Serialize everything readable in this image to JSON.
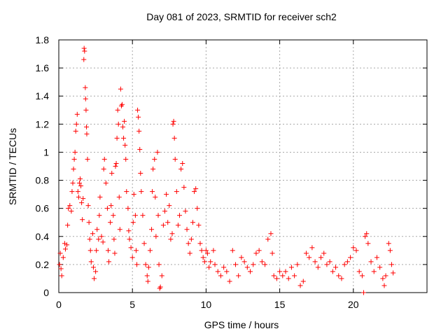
{
  "chart_data": {
    "type": "scatter",
    "title": "Day 081 of 2023, SRMTID for receiver sch2",
    "xlabel": "GPS time / hours",
    "ylabel": "SRMTID / TECUs",
    "xlim": [
      0,
      25
    ],
    "ylim": [
      0,
      1.8
    ],
    "xticks": [
      0,
      5,
      10,
      15,
      20
    ],
    "yticks": [
      0,
      0.2,
      0.4,
      0.6,
      0.8,
      1,
      1.2,
      1.4,
      1.6,
      1.8
    ],
    "grid": true,
    "marker": "+",
    "color": "#ff0000",
    "series": [
      {
        "name": "SRMTID",
        "points": [
          [
            0.05,
            0.2
          ],
          [
            0.1,
            0.28
          ],
          [
            0.15,
            0.17
          ],
          [
            0.2,
            0.12
          ],
          [
            0.3,
            0.25
          ],
          [
            0.4,
            0.35
          ],
          [
            0.45,
            0.31
          ],
          [
            0.55,
            0.34
          ],
          [
            0.6,
            0.48
          ],
          [
            0.65,
            0.6
          ],
          [
            0.75,
            0.62
          ],
          [
            0.85,
            0.58
          ],
          [
            0.9,
            0.72
          ],
          [
            0.95,
            0.78
          ],
          [
            1.0,
            0.88
          ],
          [
            1.05,
            0.95
          ],
          [
            1.1,
            1.0
          ],
          [
            1.15,
            1.15
          ],
          [
            1.2,
            1.2
          ],
          [
            1.25,
            1.27
          ],
          [
            1.3,
            0.72
          ],
          [
            1.35,
            0.68
          ],
          [
            1.4,
            0.78
          ],
          [
            1.45,
            0.81
          ],
          [
            1.5,
            0.76
          ],
          [
            1.55,
            0.64
          ],
          [
            1.6,
            0.52
          ],
          [
            1.65,
            0.67
          ],
          [
            1.7,
            1.66
          ],
          [
            1.72,
            1.74
          ],
          [
            1.75,
            1.72
          ],
          [
            1.8,
            1.46
          ],
          [
            1.82,
            1.38
          ],
          [
            1.85,
            1.3
          ],
          [
            1.88,
            1.18
          ],
          [
            1.9,
            1.13
          ],
          [
            1.95,
            0.95
          ],
          [
            2.0,
            0.62
          ],
          [
            2.05,
            0.5
          ],
          [
            2.1,
            0.38
          ],
          [
            2.15,
            0.3
          ],
          [
            2.2,
            0.22
          ],
          [
            2.3,
            0.42
          ],
          [
            2.35,
            0.18
          ],
          [
            2.4,
            0.1
          ],
          [
            2.5,
            0.15
          ],
          [
            2.55,
            0.3
          ],
          [
            2.6,
            0.45
          ],
          [
            2.7,
            0.38
          ],
          [
            2.75,
            0.55
          ],
          [
            2.8,
            0.68
          ],
          [
            2.9,
            0.4
          ],
          [
            3.0,
            0.36
          ],
          [
            3.05,
            0.88
          ],
          [
            3.1,
            0.95
          ],
          [
            3.2,
            0.78
          ],
          [
            3.3,
            0.6
          ],
          [
            3.35,
            0.3
          ],
          [
            3.4,
            0.22
          ],
          [
            3.5,
            0.5
          ],
          [
            3.55,
            0.62
          ],
          [
            3.6,
            0.85
          ],
          [
            3.7,
            0.55
          ],
          [
            3.75,
            0.38
          ],
          [
            3.8,
            0.28
          ],
          [
            3.85,
            0.9
          ],
          [
            3.9,
            0.92
          ],
          [
            3.95,
            1.1
          ],
          [
            4.0,
            1.3
          ],
          [
            4.05,
            1.2
          ],
          [
            4.1,
            0.68
          ],
          [
            4.15,
            0.45
          ],
          [
            4.2,
            1.45
          ],
          [
            4.25,
            1.33
          ],
          [
            4.3,
            1.34
          ],
          [
            4.35,
            1.18
          ],
          [
            4.4,
            1.1
          ],
          [
            4.45,
            1.22
          ],
          [
            4.5,
            1.05
          ],
          [
            4.55,
            0.95
          ],
          [
            4.6,
            0.72
          ],
          [
            4.7,
            0.6
          ],
          [
            4.75,
            0.44
          ],
          [
            4.8,
            0.38
          ],
          [
            4.9,
            0.32
          ],
          [
            5.0,
            0.25
          ],
          [
            5.05,
            0.5
          ],
          [
            5.1,
            0.7
          ],
          [
            5.2,
            0.55
          ],
          [
            5.25,
            0.3
          ],
          [
            5.3,
            0.2
          ],
          [
            5.35,
            1.3
          ],
          [
            5.4,
            1.25
          ],
          [
            5.45,
            1.15
          ],
          [
            5.5,
            1.02
          ],
          [
            5.55,
            0.85
          ],
          [
            5.6,
            0.72
          ],
          [
            5.7,
            0.55
          ],
          [
            5.8,
            0.35
          ],
          [
            5.9,
            0.2
          ],
          [
            6.0,
            0.12
          ],
          [
            6.05,
            0.08
          ],
          [
            6.1,
            0.18
          ],
          [
            6.2,
            0.3
          ],
          [
            6.3,
            0.45
          ],
          [
            6.35,
            0.72
          ],
          [
            6.4,
            0.88
          ],
          [
            6.5,
            0.95
          ],
          [
            6.55,
            0.68
          ],
          [
            6.6,
            0.4
          ],
          [
            6.7,
            1.0
          ],
          [
            6.75,
            0.55
          ],
          [
            6.8,
            0.2
          ],
          [
            6.85,
            0.03
          ],
          [
            6.9,
            0.04
          ],
          [
            7.0,
            0.12
          ],
          [
            7.1,
            0.48
          ],
          [
            7.2,
            0.58
          ],
          [
            7.3,
            0.7
          ],
          [
            7.4,
            0.5
          ],
          [
            7.5,
            0.62
          ],
          [
            7.6,
            0.38
          ],
          [
            7.7,
            0.42
          ],
          [
            7.75,
            1.2
          ],
          [
            7.8,
            1.22
          ],
          [
            7.85,
            1.1
          ],
          [
            7.9,
            0.95
          ],
          [
            8.0,
            0.72
          ],
          [
            8.1,
            0.48
          ],
          [
            8.2,
            0.55
          ],
          [
            8.3,
            0.88
          ],
          [
            8.4,
            0.92
          ],
          [
            8.5,
            0.75
          ],
          [
            8.6,
            0.58
          ],
          [
            8.7,
            0.45
          ],
          [
            8.8,
            0.35
          ],
          [
            8.9,
            0.28
          ],
          [
            9.0,
            0.38
          ],
          [
            9.1,
            0.5
          ],
          [
            9.2,
            0.72
          ],
          [
            9.3,
            0.74
          ],
          [
            9.4,
            0.6
          ],
          [
            9.5,
            0.48
          ],
          [
            9.6,
            0.35
          ],
          [
            9.7,
            0.3
          ],
          [
            9.8,
            0.25
          ],
          [
            9.9,
            0.22
          ],
          [
            10.0,
            0.3
          ],
          [
            10.1,
            0.28
          ],
          [
            10.2,
            0.18
          ],
          [
            10.3,
            0.22
          ],
          [
            10.5,
            0.3
          ],
          [
            10.6,
            0.2
          ],
          [
            10.8,
            0.15
          ],
          [
            11.0,
            0.12
          ],
          [
            11.2,
            0.18
          ],
          [
            11.4,
            0.15
          ],
          [
            11.6,
            0.08
          ],
          [
            11.8,
            0.3
          ],
          [
            12.0,
            0.2
          ],
          [
            12.2,
            0.12
          ],
          [
            12.4,
            0.25
          ],
          [
            12.6,
            0.22
          ],
          [
            12.8,
            0.18
          ],
          [
            13.0,
            0.15
          ],
          [
            13.2,
            0.2
          ],
          [
            13.4,
            0.28
          ],
          [
            13.6,
            0.3
          ],
          [
            13.8,
            0.22
          ],
          [
            14.0,
            0.2
          ],
          [
            14.2,
            0.38
          ],
          [
            14.4,
            0.42
          ],
          [
            14.5,
            0.28
          ],
          [
            14.6,
            0.12
          ],
          [
            14.8,
            0.1
          ],
          [
            15.0,
            0.15
          ],
          [
            15.2,
            0.12
          ],
          [
            15.4,
            0.15
          ],
          [
            15.6,
            0.1
          ],
          [
            15.8,
            0.18
          ],
          [
            16.0,
            0.12
          ],
          [
            16.2,
            0.2
          ],
          [
            16.4,
            0.05
          ],
          [
            16.6,
            0.08
          ],
          [
            16.8,
            0.28
          ],
          [
            17.0,
            0.25
          ],
          [
            17.2,
            0.32
          ],
          [
            17.4,
            0.22
          ],
          [
            17.6,
            0.18
          ],
          [
            17.8,
            0.25
          ],
          [
            18.0,
            0.28
          ],
          [
            18.2,
            0.2
          ],
          [
            18.4,
            0.22
          ],
          [
            18.6,
            0.15
          ],
          [
            18.8,
            0.18
          ],
          [
            19.0,
            0.12
          ],
          [
            19.2,
            0.1
          ],
          [
            19.4,
            0.2
          ],
          [
            19.6,
            0.22
          ],
          [
            19.8,
            0.25
          ],
          [
            20.0,
            0.32
          ],
          [
            20.2,
            0.3
          ],
          [
            20.4,
            0.15
          ],
          [
            20.6,
            0.12
          ],
          [
            20.7,
            0.0
          ],
          [
            20.8,
            0.4
          ],
          [
            20.9,
            0.42
          ],
          [
            21.0,
            0.35
          ],
          [
            21.2,
            0.22
          ],
          [
            21.4,
            0.15
          ],
          [
            21.6,
            0.25
          ],
          [
            21.8,
            0.18
          ],
          [
            22.0,
            0.1
          ],
          [
            22.1,
            0.05
          ],
          [
            22.2,
            0.12
          ],
          [
            22.4,
            0.35
          ],
          [
            22.5,
            0.3
          ],
          [
            22.6,
            0.2
          ],
          [
            22.7,
            0.14
          ]
        ]
      }
    ]
  }
}
